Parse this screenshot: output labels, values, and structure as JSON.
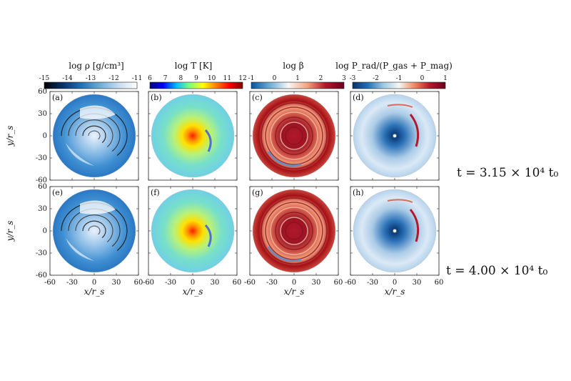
{
  "colorbars": [
    {
      "label": "log ρ [g/cm³]",
      "ticks": [
        "-15",
        "-14",
        "-13",
        "-12",
        "-11"
      ],
      "stops": [
        "#000000",
        "#08306b",
        "#2171b5",
        "#6baed6",
        "#c6dbef",
        "#ffffff"
      ]
    },
    {
      "label": "log T [K]",
      "ticks": [
        "6",
        "7",
        "8",
        "9",
        "10",
        "11",
        "12"
      ],
      "stops": [
        "#00007f",
        "#0000ff",
        "#00bfff",
        "#7fff7f",
        "#ffff00",
        "#ff7f00",
        "#ff0000",
        "#7f0000"
      ]
    },
    {
      "label": "log β",
      "ticks": [
        "-1",
        "0",
        "1",
        "2",
        "3"
      ],
      "stops": [
        "#08519c",
        "#6baed6",
        "#f7f7f7",
        "#f4a582",
        "#b2182b",
        "#67001f"
      ]
    },
    {
      "label": "log P_rad/(P_gas + P_mag)",
      "ticks": [
        "-3",
        "-2",
        "-1",
        "0",
        "1"
      ],
      "stops": [
        "#08306b",
        "#2171b5",
        "#9ecae1",
        "#f7f7f7",
        "#ef8a62",
        "#b2182b",
        "#67001f"
      ]
    }
  ],
  "panels": [
    {
      "label": "(a)",
      "kind": "density"
    },
    {
      "label": "(b)",
      "kind": "temperature"
    },
    {
      "label": "(c)",
      "kind": "beta"
    },
    {
      "label": "(d)",
      "kind": "pressure"
    },
    {
      "label": "(e)",
      "kind": "density"
    },
    {
      "label": "(f)",
      "kind": "temperature"
    },
    {
      "label": "(g)",
      "kind": "beta"
    },
    {
      "label": "(h)",
      "kind": "pressure"
    }
  ],
  "axes": {
    "ylabel": "y/r_s",
    "xlabel": "x/r_s",
    "yticks": [
      "60",
      "30",
      "0",
      "-30",
      "-60"
    ],
    "xticks": [
      "-60",
      "-30",
      "0",
      "30",
      "60"
    ]
  },
  "time_labels": [
    "t = 3.15 × 10⁴ t₀",
    "t = 4.00 × 10⁴ t₀"
  ]
}
